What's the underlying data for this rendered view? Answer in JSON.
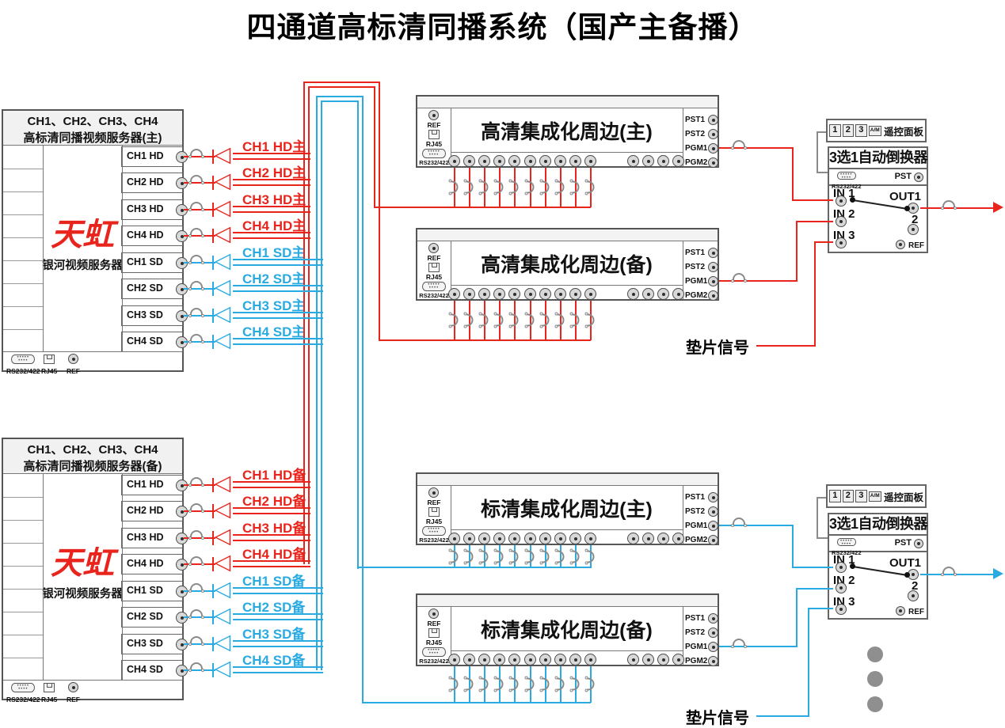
{
  "title": "四通道高标清同播系统（国产主备播）",
  "colors": {
    "hd_red": "#e8241c",
    "sd_blue": "#29abe2",
    "wire_gray": "#8a8a8a"
  },
  "icons": {
    "bnc": "circle-with-center-pin",
    "db9": "serial-connector-dots",
    "rj45": "ethernet-jack",
    "loop": "cable-slack-arc",
    "da_glyph": "◁",
    "arrow_glyph": "▶"
  },
  "servers": [
    {
      "header_line1": "CH1、CH2、CH3、CH4",
      "header_line2": "高标清同播视频服务器(主)",
      "brand": "天虹",
      "model": "银河视频服务器",
      "ports": [
        "CH1 HD",
        "CH2 HD",
        "CH3 HD",
        "CH4 HD",
        "CH1 SD",
        "CH2 SD",
        "CH3 SD",
        "CH4 SD"
      ],
      "io": {
        "serial": "RS232/422",
        "ethernet": "RJ45",
        "ref": "REF"
      }
    },
    {
      "header_line1": "CH1、CH2、CH3、CH4",
      "header_line2": "高标清同播视频服务器(备)",
      "brand": "天虹",
      "model": "银河视频服务器",
      "ports": [
        "CH1 HD",
        "CH2 HD",
        "CH3 HD",
        "CH4 HD",
        "CH1 SD",
        "CH2 SD",
        "CH3 SD",
        "CH4 SD"
      ],
      "io": {
        "serial": "RS232/422",
        "ethernet": "RJ45",
        "ref": "REF"
      }
    }
  ],
  "signal_labels": {
    "top": [
      "CH1 HD主",
      "CH2 HD主",
      "CH3 HD主",
      "CH4 HD主",
      "CH1 SD主",
      "CH2 SD主",
      "CH3 SD主",
      "CH4 SD主"
    ],
    "bottom": [
      "CH1 HD备",
      "CH2 HD备",
      "CH3 HD备",
      "CH4 HD备",
      "CH1 SD备",
      "CH2 SD备",
      "CH3 SD备",
      "CH4 SD备"
    ]
  },
  "peripherals": [
    {
      "title": "高清集成化周边(主)",
      "ref": "REF",
      "ethernet": "RJ45",
      "serial": "RS232/422",
      "outputs": [
        "PST1",
        "PST2",
        "PGM1",
        "PGM2"
      ]
    },
    {
      "title": "高清集成化周边(备)",
      "ref": "REF",
      "ethernet": "RJ45",
      "serial": "RS232/422",
      "outputs": [
        "PST1",
        "PST2",
        "PGM1",
        "PGM2"
      ]
    },
    {
      "title": "标清集成化周边(主)",
      "ref": "REF",
      "ethernet": "RJ45",
      "serial": "RS232/422",
      "outputs": [
        "PST1",
        "PST2",
        "PGM1",
        "PGM2"
      ]
    },
    {
      "title": "标清集成化周边(备)",
      "ref": "REF",
      "ethernet": "RJ45",
      "serial": "RS232/422",
      "outputs": [
        "PST1",
        "PST2",
        "PGM1",
        "PGM2"
      ]
    }
  ],
  "switchers": [
    {
      "panel_buttons": [
        "1",
        "2",
        "3"
      ],
      "panel_am": "A/M",
      "panel_label": "遥控面板",
      "title": "3选1自动倒换器",
      "serial": "RS232/422",
      "pst": "PST",
      "inputs": [
        "IN 1",
        "IN 2",
        "IN 3"
      ],
      "out1": "OUT1",
      "out2": "2",
      "ref": "REF"
    },
    {
      "panel_buttons": [
        "1",
        "2",
        "3"
      ],
      "panel_am": "A/M",
      "panel_label": "遥控面板",
      "title": "3选1自动倒换器",
      "serial": "RS232/422",
      "pst": "PST",
      "inputs": [
        "IN 1",
        "IN 2",
        "IN 3"
      ],
      "out1": "OUT1",
      "out2": "2",
      "ref": "REF"
    }
  ],
  "pad_signals": [
    "垫片信号",
    "垫片信号"
  ]
}
